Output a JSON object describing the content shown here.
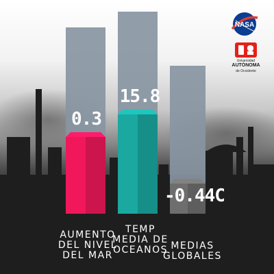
{
  "chart_data": {
    "type": "bar",
    "categories": [
      "AUMENTO\nDEL NIVEL\nDEL MAR",
      "TEMP\nMEDIA DE\nOCEANOS",
      "MEDIAS\nGLOBALES"
    ],
    "values": [
      0.3,
      15.8,
      -0.44
    ],
    "value_labels": [
      "0.3",
      "15.8",
      "-0.44C"
    ],
    "title": "",
    "xlabel": "",
    "ylabel": "",
    "grid": false,
    "legend": "none"
  },
  "colors": {
    "bar_1": "#f0185a",
    "bar_2": "#1aa8a0",
    "bar_3": "#6e6e6e",
    "bar_background": "#8895a2"
  },
  "logos": {
    "nasa": "NASA",
    "uao_line1": "Universidad",
    "uao_line2": "AUTÓNOMA",
    "uao_line3": "de Occidente"
  }
}
